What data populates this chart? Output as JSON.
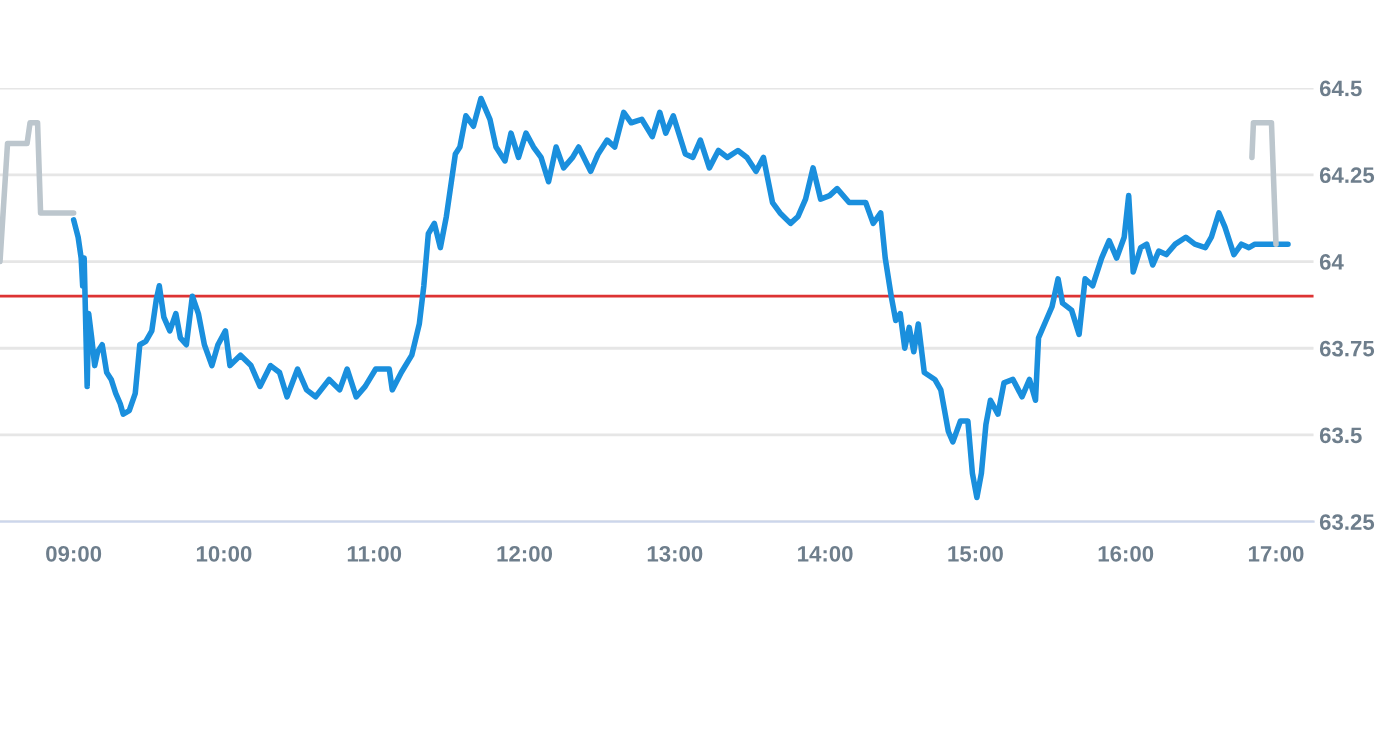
{
  "chart_data": {
    "type": "line",
    "xlim": [
      8.51,
      17.25
    ],
    "xticks": [
      {
        "value": 9,
        "label": "09:00"
      },
      {
        "value": 10,
        "label": "10:00"
      },
      {
        "value": 11,
        "label": "11:00"
      },
      {
        "value": 12,
        "label": "12:00"
      },
      {
        "value": 13,
        "label": "13:00"
      },
      {
        "value": 14,
        "label": "14:00"
      },
      {
        "value": 15,
        "label": "15:00"
      },
      {
        "value": 16,
        "label": "16:00"
      },
      {
        "value": 17,
        "label": "17:00"
      }
    ],
    "ylim": [
      63.25,
      64.5
    ],
    "yticks": [
      63.25,
      63.5,
      63.75,
      64,
      64.25,
      64.5
    ],
    "grid": "y",
    "marker": "none",
    "line_style": "solid",
    "ref_lines": [
      {
        "axis": "y",
        "value": 63.9,
        "color": "#dd3333"
      }
    ],
    "series": [
      {
        "color": "#bcc6cd",
        "x": [
          8.51,
          8.56,
          8.69,
          8.71,
          8.76,
          8.78,
          9.0
        ],
        "values": [
          64.0,
          64.34,
          64.34,
          64.4,
          64.4,
          64.14,
          64.14
        ]
      },
      {
        "color": "#1a8fdd",
        "x": [
          9.0,
          9.03,
          9.05,
          9.06,
          9.07,
          9.09,
          9.1,
          9.12,
          9.14,
          9.16,
          9.19,
          9.22,
          9.25,
          9.28,
          9.31,
          9.33,
          9.37,
          9.41,
          9.44,
          9.48,
          9.52,
          9.55,
          9.57,
          9.6,
          9.64,
          9.68,
          9.71,
          9.75,
          9.79,
          9.83,
          9.87,
          9.92,
          9.96,
          10.01,
          10.04,
          10.11,
          10.18,
          10.24,
          10.31,
          10.37,
          10.42,
          10.49,
          10.55,
          10.61,
          10.7,
          10.77,
          10.82,
          10.88,
          10.94,
          11.01,
          11.1,
          11.12,
          11.18,
          11.25,
          11.3,
          11.33,
          11.36,
          11.4,
          11.44,
          11.48,
          11.54,
          11.57,
          11.61,
          11.66,
          11.71,
          11.77,
          11.81,
          11.87,
          11.91,
          11.96,
          12.01,
          12.06,
          12.11,
          12.16,
          12.21,
          12.26,
          12.32,
          12.36,
          12.44,
          12.49,
          12.55,
          12.6,
          12.66,
          12.71,
          12.78,
          12.85,
          12.9,
          12.94,
          12.99,
          13.07,
          13.12,
          13.17,
          13.23,
          13.29,
          13.35,
          13.42,
          13.48,
          13.54,
          13.59,
          13.65,
          13.7,
          13.77,
          13.82,
          13.87,
          13.92,
          13.97,
          14.03,
          14.08,
          14.16,
          14.27,
          14.32,
          14.37,
          14.4,
          14.44,
          14.47,
          14.5,
          14.53,
          14.56,
          14.59,
          14.62,
          14.66,
          14.73,
          14.77,
          14.82,
          14.85,
          14.9,
          14.95,
          14.98,
          15.01,
          15.04,
          15.07,
          15.1,
          15.15,
          15.19,
          15.25,
          15.31,
          15.36,
          15.4,
          15.42,
          15.47,
          15.51,
          15.55,
          15.58,
          15.64,
          15.69,
          15.73,
          15.78,
          15.84,
          15.89,
          15.94,
          15.99,
          16.02,
          16.05,
          16.1,
          16.14,
          16.18,
          16.22,
          16.27,
          16.33,
          16.4,
          16.46,
          16.53,
          16.57,
          16.62,
          16.66,
          16.72,
          16.77,
          16.82,
          16.86,
          17.0,
          17.08
        ],
        "values": [
          64.12,
          64.07,
          64.01,
          63.93,
          64.01,
          63.64,
          63.85,
          63.78,
          63.7,
          63.74,
          63.76,
          63.68,
          63.66,
          63.62,
          63.59,
          63.56,
          63.57,
          63.62,
          63.76,
          63.77,
          63.8,
          63.89,
          63.93,
          63.84,
          63.8,
          63.85,
          63.78,
          63.76,
          63.9,
          63.85,
          63.76,
          63.7,
          63.76,
          63.8,
          63.7,
          63.73,
          63.7,
          63.64,
          63.7,
          63.68,
          63.61,
          63.69,
          63.63,
          63.61,
          63.66,
          63.63,
          63.69,
          63.61,
          63.64,
          63.69,
          63.69,
          63.63,
          63.68,
          63.73,
          63.82,
          63.93,
          64.08,
          64.11,
          64.04,
          64.13,
          64.31,
          64.33,
          64.42,
          64.39,
          64.47,
          64.41,
          64.33,
          64.29,
          64.37,
          64.3,
          64.37,
          64.33,
          64.3,
          64.23,
          64.33,
          64.27,
          64.3,
          64.33,
          64.26,
          64.31,
          64.35,
          64.33,
          64.43,
          64.4,
          64.41,
          64.36,
          64.43,
          64.37,
          64.42,
          64.31,
          64.3,
          64.35,
          64.27,
          64.32,
          64.3,
          64.32,
          64.3,
          64.26,
          64.3,
          64.17,
          64.14,
          64.11,
          64.13,
          64.18,
          64.27,
          64.18,
          64.19,
          64.21,
          64.17,
          64.17,
          64.11,
          64.14,
          64.01,
          63.9,
          63.83,
          63.85,
          63.75,
          63.81,
          63.74,
          63.82,
          63.68,
          63.66,
          63.63,
          63.51,
          63.48,
          63.54,
          63.54,
          63.39,
          63.32,
          63.39,
          63.53,
          63.6,
          63.56,
          63.65,
          63.66,
          63.61,
          63.66,
          63.6,
          63.78,
          63.83,
          63.87,
          63.95,
          63.88,
          63.86,
          63.79,
          63.95,
          63.93,
          64.01,
          64.06,
          64.01,
          64.07,
          64.19,
          63.97,
          64.04,
          64.05,
          63.99,
          64.03,
          64.02,
          64.05,
          64.07,
          64.05,
          64.04,
          64.07,
          64.14,
          64.1,
          64.02,
          64.05,
          64.04,
          64.05,
          64.05,
          64.05
        ]
      },
      {
        "color": "#bcc6cd",
        "x": [
          16.84,
          16.85,
          16.97,
          17.0
        ],
        "values": [
          64.3,
          64.4,
          64.4,
          64.05
        ]
      }
    ]
  }
}
